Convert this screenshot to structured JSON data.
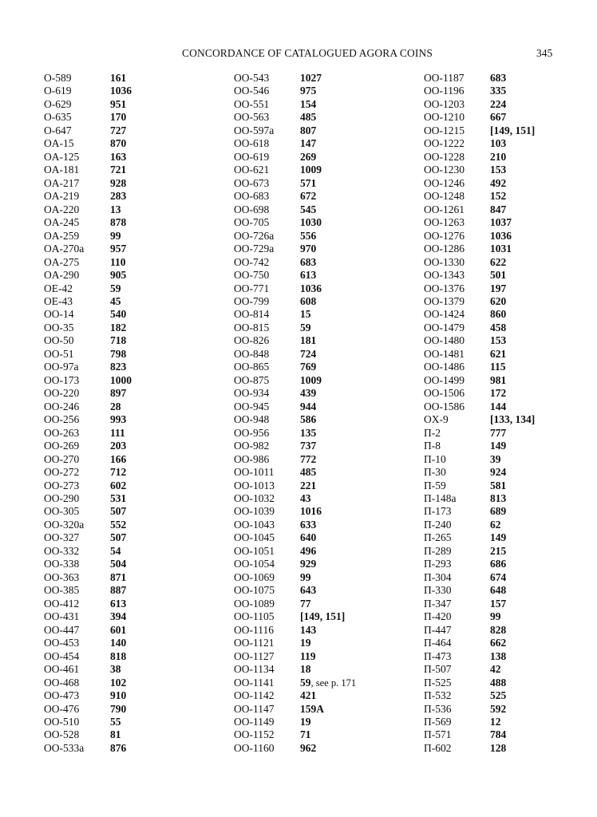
{
  "header": {
    "title": "CONCORDANCE OF CATALOGUED AGORA COINS",
    "page_number": "345"
  },
  "columns": [
    [
      [
        "O-589",
        "161"
      ],
      [
        "O-619",
        "1036"
      ],
      [
        "O-629",
        "951"
      ],
      [
        "O-635",
        "170"
      ],
      [
        "O-647",
        "727"
      ],
      [
        "OA-15",
        "870"
      ],
      [
        "OA-125",
        "163"
      ],
      [
        "OA-181",
        "721"
      ],
      [
        "OA-217",
        "928"
      ],
      [
        "OA-219",
        "283"
      ],
      [
        "OA-220",
        "13"
      ],
      [
        "OA-245",
        "878"
      ],
      [
        "OA-259",
        "99"
      ],
      [
        "OA-270a",
        "957"
      ],
      [
        "OA-275",
        "110"
      ],
      [
        "OA-290",
        "905"
      ],
      [
        "OE-42",
        "59"
      ],
      [
        "OE-43",
        "45"
      ],
      [
        "OO-14",
        "540"
      ],
      [
        "OO-35",
        "182"
      ],
      [
        "OO-50",
        "718"
      ],
      [
        "OO-51",
        "798"
      ],
      [
        "OO-97a",
        "823"
      ],
      [
        "OO-173",
        "1000"
      ],
      [
        "OO-220",
        "897"
      ],
      [
        "OO-246",
        "28"
      ],
      [
        "OO-256",
        "993"
      ],
      [
        "OO-263",
        "111"
      ],
      [
        "OO-269",
        "203"
      ],
      [
        "OO-270",
        "166"
      ],
      [
        "OO-272",
        "712"
      ],
      [
        "OO-273",
        "602"
      ],
      [
        "OO-290",
        "531"
      ],
      [
        "OO-305",
        "507"
      ],
      [
        "OO-320a",
        "552"
      ],
      [
        "OO-327",
        "507"
      ],
      [
        "OO-332",
        "54"
      ],
      [
        "OO-338",
        "504"
      ],
      [
        "OO-363",
        "871"
      ],
      [
        "OO-385",
        "887"
      ],
      [
        "OO-412",
        "613"
      ],
      [
        "OO-431",
        "394"
      ],
      [
        "OO-447",
        "601"
      ],
      [
        "OO-453",
        "140"
      ],
      [
        "OO-454",
        "818"
      ],
      [
        "OO-461",
        "38"
      ],
      [
        "OO-468",
        "102"
      ],
      [
        "OO-473",
        "910"
      ],
      [
        "OO-476",
        "790"
      ],
      [
        "OO-510",
        "55"
      ],
      [
        "OO-528",
        "81"
      ],
      [
        "OO-533a",
        "876"
      ]
    ],
    [
      [
        "OO-543",
        "1027"
      ],
      [
        "OO-546",
        "975"
      ],
      [
        "OO-551",
        "154"
      ],
      [
        "OO-563",
        "485"
      ],
      [
        "OO-597a",
        "807"
      ],
      [
        "OO-618",
        "147"
      ],
      [
        "OO-619",
        "269"
      ],
      [
        "OO-621",
        "1009"
      ],
      [
        "OO-673",
        "571"
      ],
      [
        "OO-683",
        "672"
      ],
      [
        "OO-698",
        "545"
      ],
      [
        "OO-705",
        "1030"
      ],
      [
        "OO-726a",
        "556"
      ],
      [
        "OO-729a",
        "970"
      ],
      [
        "OO-742",
        "683"
      ],
      [
        "OO-750",
        "613"
      ],
      [
        "OO-771",
        "1036"
      ],
      [
        "OO-799",
        "608"
      ],
      [
        "OO-814",
        "15"
      ],
      [
        "OO-815",
        "59"
      ],
      [
        "OO-826",
        "181"
      ],
      [
        "OO-848",
        "724"
      ],
      [
        "OO-865",
        "769"
      ],
      [
        "OO-875",
        "1009"
      ],
      [
        "OO-934",
        "439"
      ],
      [
        "OO-945",
        "944"
      ],
      [
        "OO-948",
        "586"
      ],
      [
        "OO-956",
        "135"
      ],
      [
        "OO-982",
        "737"
      ],
      [
        "OO-986",
        "772"
      ],
      [
        "OO-1011",
        "485"
      ],
      [
        "OO-1013",
        "221"
      ],
      [
        "OO-1032",
        "43"
      ],
      [
        "OO-1039",
        "1016"
      ],
      [
        "OO-1043",
        "633"
      ],
      [
        "OO-1045",
        "640"
      ],
      [
        "OO-1051",
        "496"
      ],
      [
        "OO-1054",
        "929"
      ],
      [
        "OO-1069",
        "99"
      ],
      [
        "OO-1075",
        "643"
      ],
      [
        "OO-1089",
        "77"
      ],
      [
        "OO-1105",
        "[149, 151]"
      ],
      [
        "OO-1116",
        "143"
      ],
      [
        "OO-1121",
        "19"
      ],
      [
        "OO-1127",
        "119"
      ],
      [
        "OO-1134",
        "18"
      ],
      [
        "OO-1141",
        "59",
        ", see p. 171"
      ],
      [
        "OO-1142",
        "421"
      ],
      [
        "OO-1147",
        "159A"
      ],
      [
        "OO-1149",
        "19"
      ],
      [
        "OO-1152",
        "71"
      ],
      [
        "OO-1160",
        "962"
      ]
    ],
    [
      [
        "OO-1187",
        "683"
      ],
      [
        "OO-1196",
        "335"
      ],
      [
        "OO-1203",
        "224"
      ],
      [
        "OO-1210",
        "667"
      ],
      [
        "OO-1215",
        "[149, 151]"
      ],
      [
        "OO-1222",
        "103"
      ],
      [
        "OO-1228",
        "210"
      ],
      [
        "OO-1230",
        "153"
      ],
      [
        "OO-1246",
        "492"
      ],
      [
        "OO-1248",
        "152"
      ],
      [
        "OO-1261",
        "847"
      ],
      [
        "OO-1263",
        "1037"
      ],
      [
        "OO-1276",
        "1036"
      ],
      [
        "OO-1286",
        "1031"
      ],
      [
        "OO-1330",
        "622"
      ],
      [
        "OO-1343",
        "501"
      ],
      [
        "OO-1376",
        "197"
      ],
      [
        "OO-1379",
        "620"
      ],
      [
        "OO-1424",
        "860"
      ],
      [
        "OO-1479",
        "458"
      ],
      [
        "OO-1480",
        "153"
      ],
      [
        "OO-1481",
        "621"
      ],
      [
        "OO-1486",
        "115"
      ],
      [
        "OO-1499",
        "981"
      ],
      [
        "OO-1506",
        "172"
      ],
      [
        "OO-1586",
        "144"
      ],
      [
        "OX-9",
        "[133, 134]"
      ],
      [
        "Π-2",
        "777"
      ],
      [
        "Π-8",
        "149"
      ],
      [
        "Π-10",
        "39"
      ],
      [
        "Π-30",
        "924"
      ],
      [
        "Π-59",
        "581"
      ],
      [
        "Π-148a",
        "813"
      ],
      [
        "Π-173",
        "689"
      ],
      [
        "Π-240",
        "62"
      ],
      [
        "Π-265",
        "149"
      ],
      [
        "Π-289",
        "215"
      ],
      [
        "Π-293",
        "686"
      ],
      [
        "Π-304",
        "674"
      ],
      [
        "Π-330",
        "648"
      ],
      [
        "Π-347",
        "157"
      ],
      [
        "Π-420",
        "99"
      ],
      [
        "Π-447",
        "828"
      ],
      [
        "Π-464",
        "662"
      ],
      [
        "Π-473",
        "138"
      ],
      [
        "Π-507",
        "42"
      ],
      [
        "Π-525",
        "488"
      ],
      [
        "Π-532",
        "525"
      ],
      [
        "Π-536",
        "592"
      ],
      [
        "Π-569",
        "12"
      ],
      [
        "Π-571",
        "784"
      ],
      [
        "Π-602",
        "128"
      ]
    ]
  ]
}
